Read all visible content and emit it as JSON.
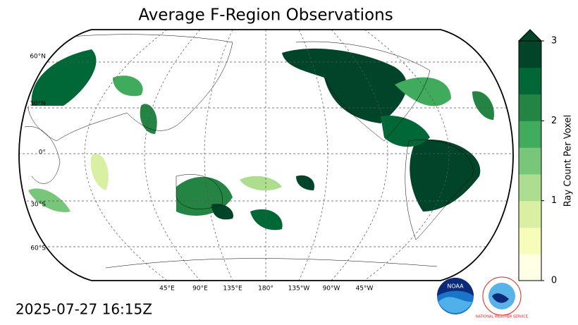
{
  "title": "Average F-Region Observations",
  "map": {
    "lat_labels": [
      "60°N",
      "30°N",
      "0°",
      "30°S",
      "60°S"
    ],
    "lon_labels": [
      "45°E",
      "90°E",
      "135°E",
      "180°",
      "135°W",
      "90°W",
      "45°W"
    ]
  },
  "colorbar": {
    "label": "Ray Count Per Voxel",
    "lim": [
      0,
      3
    ],
    "ticks": [
      0,
      1,
      2,
      3
    ],
    "extend": "max",
    "colors": [
      "#ffffe5",
      "#f7fcb9",
      "#d9f0a3",
      "#addd8e",
      "#78c679",
      "#41ab5d",
      "#238443",
      "#006837",
      "#004529"
    ]
  },
  "timestamp": "2025-07-27 16:15Z",
  "logos": [
    "NOAA",
    "NATIONAL WEATHER SERVICE"
  ]
}
